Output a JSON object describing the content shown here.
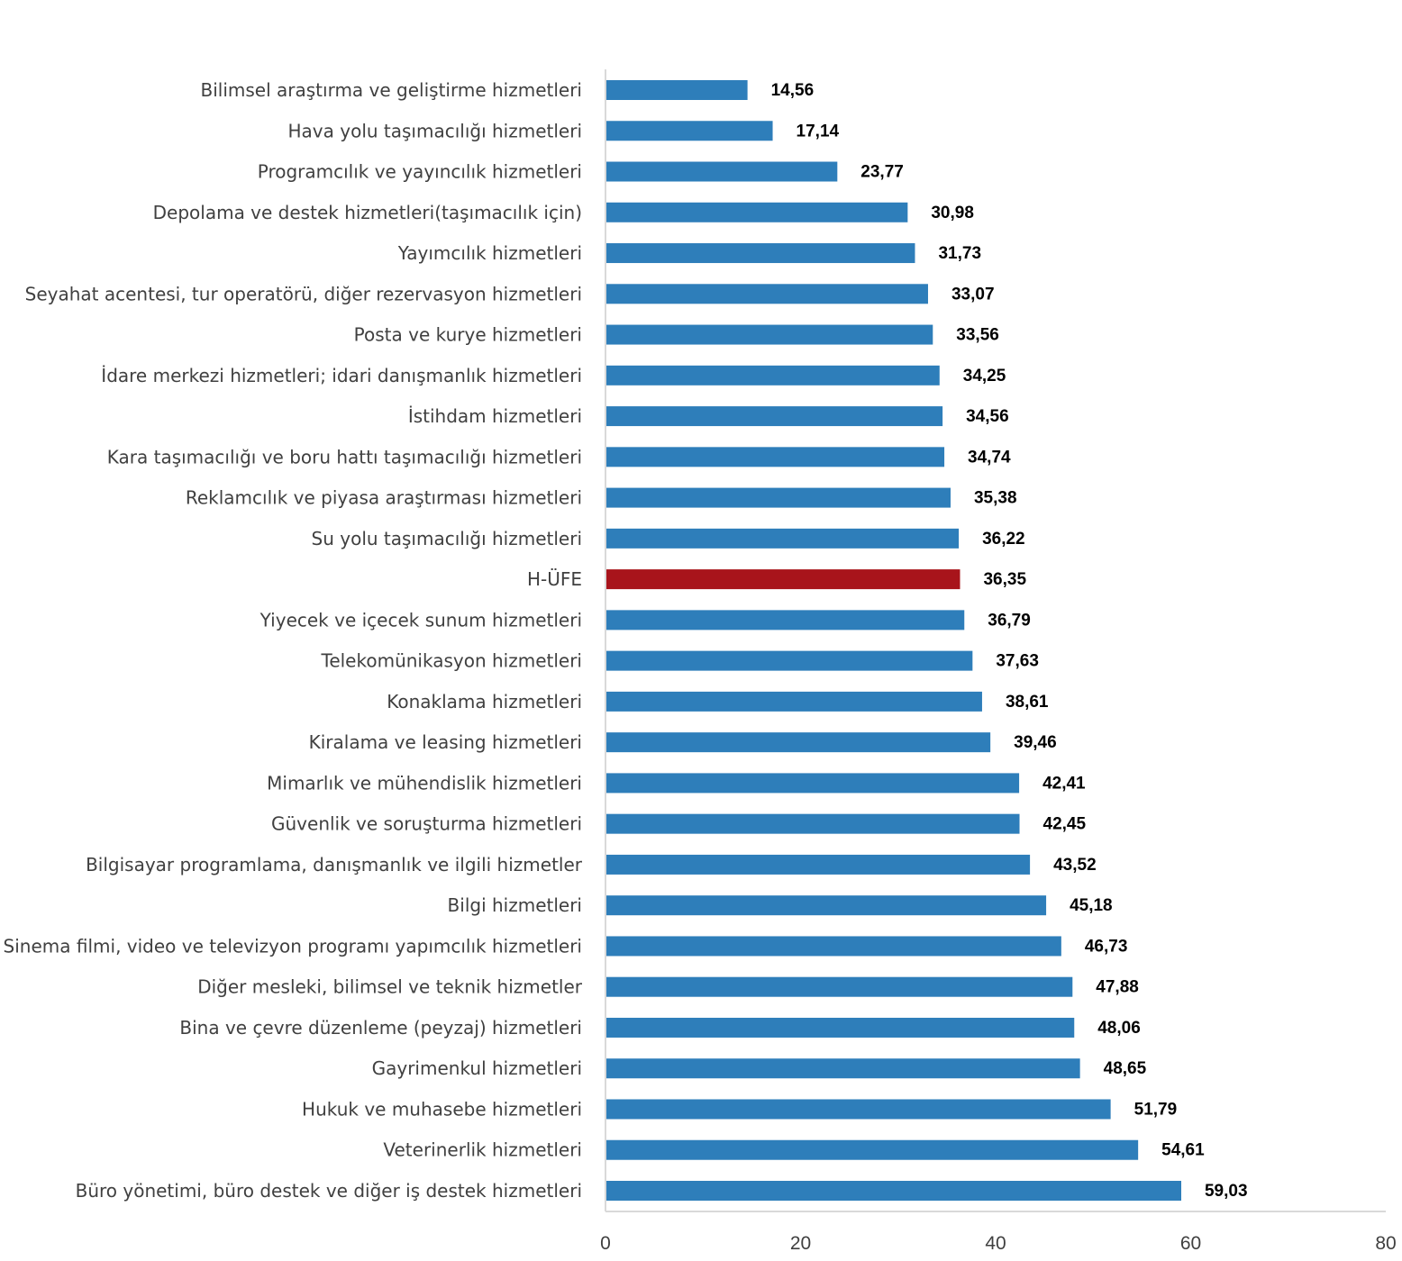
{
  "chart_data": {
    "type": "bar",
    "orientation": "horizontal",
    "title": "",
    "xlabel": "",
    "ylabel": "",
    "xlim": [
      0,
      80
    ],
    "x_ticks": [
      "0",
      "20",
      "40",
      "60",
      "80"
    ],
    "grid": false,
    "legend": "none",
    "categories": [
      "Bilimsel araştırma ve geliştirme hizmetleri",
      "Hava yolu taşımacılığı hizmetleri",
      "Programcılık ve yayıncılık hizmetleri",
      "Depolama ve destek hizmetleri(taşımacılık için)",
      "Yayımcılık hizmetleri",
      "Seyahat acentesi, tur operatörü, diğer rezervasyon hizmetleri",
      "Posta ve kurye hizmetleri",
      "İdare merkezi hizmetleri; idari danışmanlık hizmetleri",
      "İstihdam hizmetleri",
      "Kara taşımacılığı ve boru hattı taşımacılığı hizmetleri",
      "Reklamcılık ve piyasa araştırması hizmetleri",
      "Su yolu taşımacılığı hizmetleri",
      "H-ÜFE",
      "Yiyecek ve içecek sunum hizmetleri",
      "Telekomünikasyon hizmetleri",
      "Konaklama hizmetleri",
      "Kiralama ve leasing hizmetleri",
      "Mimarlık ve mühendislik hizmetleri",
      "Güvenlik ve soruşturma hizmetleri",
      "Bilgisayar programlama, danışmanlık ve ilgili hizmetler",
      "Bilgi hizmetleri",
      "Sinema filmi, video ve televizyon programı yapımcılık hizmetleri",
      "Diğer mesleki, bilimsel ve teknik hizmetler",
      "Bina ve çevre düzenleme (peyzaj) hizmetleri",
      "Gayrimenkul hizmetleri",
      "Hukuk ve muhasebe hizmetleri",
      "Veterinerlik hizmetleri",
      "Büro yönetimi, büro destek ve diğer iş destek hizmetleri"
    ],
    "values": [
      14.56,
      17.14,
      23.77,
      30.98,
      31.73,
      33.07,
      33.56,
      34.25,
      34.56,
      34.74,
      35.38,
      36.22,
      36.35,
      36.79,
      37.63,
      38.61,
      39.46,
      42.41,
      42.45,
      43.52,
      45.18,
      46.73,
      47.88,
      48.06,
      48.65,
      51.79,
      54.61,
      59.03
    ],
    "value_labels": [
      "14,56",
      "17,14",
      "23,77",
      "30,98",
      "31,73",
      "33,07",
      "33,56",
      "34,25",
      "34,56",
      "34,74",
      "35,38",
      "36,22",
      "36,35",
      "36,79",
      "37,63",
      "38,61",
      "39,46",
      "42,41",
      "42,45",
      "43,52",
      "45,18",
      "46,73",
      "47,88",
      "48,06",
      "48,65",
      "51,79",
      "54,61",
      "59,03"
    ],
    "highlight_category": "H-ÜFE",
    "colors": {
      "bar": "#2E7EBA",
      "highlight": "#A8141B",
      "axis": "#D9D9D9"
    }
  }
}
